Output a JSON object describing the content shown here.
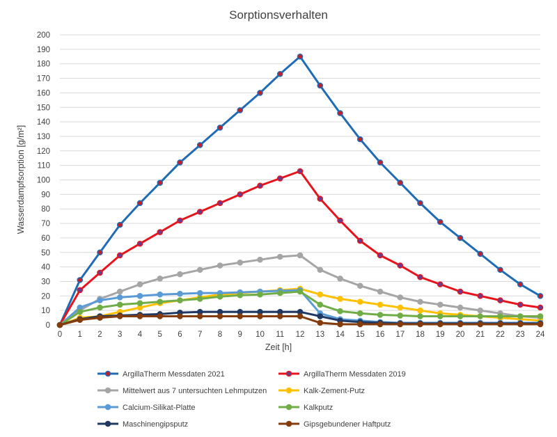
{
  "chart_data": {
    "type": "line",
    "title": "Sorptionsverhalten",
    "xlabel": "Zeit [h]",
    "ylabel": "Wasserdampfsorption [g/m²]",
    "x": [
      0,
      1,
      2,
      3,
      4,
      5,
      6,
      7,
      8,
      9,
      10,
      11,
      12,
      13,
      14,
      15,
      16,
      17,
      18,
      19,
      20,
      21,
      22,
      23,
      24
    ],
    "xlim": [
      0,
      24
    ],
    "ylim": [
      0,
      200
    ],
    "ytick_step": 10,
    "grid": "horizontal",
    "legend_position": "bottom",
    "series": [
      {
        "name": "ArgillaTherm Messdaten 2021",
        "color": "#1f6bb5",
        "marker": "#c0202a",
        "values": [
          0,
          31,
          50,
          69,
          84,
          98,
          112,
          124,
          136,
          148,
          160,
          173,
          185,
          165,
          146,
          128,
          112,
          98,
          84,
          71,
          60,
          49,
          38,
          28,
          20
        ]
      },
      {
        "name": "ArgillaTherm Messdaten 2019",
        "color": "#e8141b",
        "marker": "#6a3b8c",
        "values": [
          0,
          24,
          36,
          48,
          56,
          64,
          72,
          78,
          84,
          90,
          96,
          101,
          106,
          87,
          72,
          58,
          48,
          41,
          33,
          28,
          23,
          20,
          17,
          14,
          12
        ]
      },
      {
        "name": "Mittelwert aus 7 untersuchten Lehmputzen",
        "color": "#a5a5a5",
        "marker": "#a5a5a5",
        "values": [
          0,
          10,
          18,
          23,
          28,
          32,
          35,
          38,
          41,
          43,
          45,
          47,
          48,
          38,
          32,
          27,
          23,
          19,
          16,
          14,
          12,
          10,
          8,
          6,
          5
        ]
      },
      {
        "name": "Kalk-Zement-Putz",
        "color": "#ffc000",
        "marker": "#ffc000",
        "values": [
          0,
          5,
          6,
          9,
          12,
          15,
          17,
          19,
          21,
          22,
          23,
          24,
          25,
          21,
          18,
          16,
          14,
          12,
          10,
          8,
          7,
          6,
          5,
          4,
          3
        ]
      },
      {
        "name": "Calcium-Silikat-Platte",
        "color": "#5b9bd5",
        "marker": "#5b9bd5",
        "values": [
          0,
          12,
          17,
          19,
          20,
          21,
          21.5,
          22,
          22,
          22.5,
          23,
          23.5,
          24,
          8,
          4,
          3,
          2,
          1.5,
          1.5,
          1.5,
          1.5,
          1.5,
          1.5,
          1.5,
          1.5
        ]
      },
      {
        "name": "Kalkputz",
        "color": "#70ad47",
        "marker": "#70ad47",
        "values": [
          0,
          9,
          12,
          14,
          15,
          16,
          17,
          18,
          19.5,
          20.5,
          21,
          22,
          23,
          14,
          9.5,
          8,
          7,
          6.5,
          6,
          6,
          6,
          6,
          6,
          6,
          6
        ]
      },
      {
        "name": "Maschinengipsputz",
        "color": "#1f3864",
        "marker": "#1f3864",
        "values": [
          0,
          4,
          6,
          6.5,
          7,
          7.5,
          8.5,
          9,
          9,
          9,
          9,
          9,
          9,
          6,
          3,
          2,
          1.5,
          1,
          1,
          1,
          1,
          1,
          1,
          1,
          1
        ]
      },
      {
        "name": "Gipsgebundener Haftputz",
        "color": "#843c0c",
        "marker": "#843c0c",
        "values": [
          0,
          3.5,
          5,
          6,
          6,
          6,
          6,
          6,
          6,
          6,
          6,
          6,
          6,
          1.5,
          0.5,
          0.5,
          0.5,
          0.5,
          0.5,
          0.5,
          0.5,
          0.5,
          0.5,
          0.5,
          0.5
        ]
      }
    ]
  }
}
